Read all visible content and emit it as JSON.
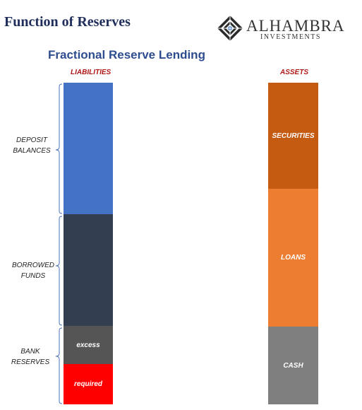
{
  "header": {
    "title": "Function of Reserves",
    "logo_name": "ALHAMBRA",
    "logo_sub": "INVESTMENTS"
  },
  "diagram": {
    "subtitle": "Fractional Reserve Lending",
    "liabilities": {
      "heading": "LIABILITIES",
      "segments": [
        {
          "label": "",
          "color": "#4472c4"
        },
        {
          "label": "",
          "color": "#333f50"
        },
        {
          "label": "excess",
          "color": "#555555"
        },
        {
          "label": "required",
          "color": "#ff0000"
        }
      ],
      "groups": [
        {
          "line1": "DEPOSIT",
          "line2": "BALANCES"
        },
        {
          "line1": "BORROWED",
          "line2": "FUNDS"
        },
        {
          "line1": "BANK",
          "line2": "RESERVES"
        }
      ]
    },
    "assets": {
      "heading": "ASSETS",
      "segments": [
        {
          "label": "SECURITIES",
          "color": "#c55a11"
        },
        {
          "label": "LOANS",
          "color": "#ed7d31"
        },
        {
          "label": "CASH",
          "color": "#7f7f7f"
        }
      ]
    }
  }
}
